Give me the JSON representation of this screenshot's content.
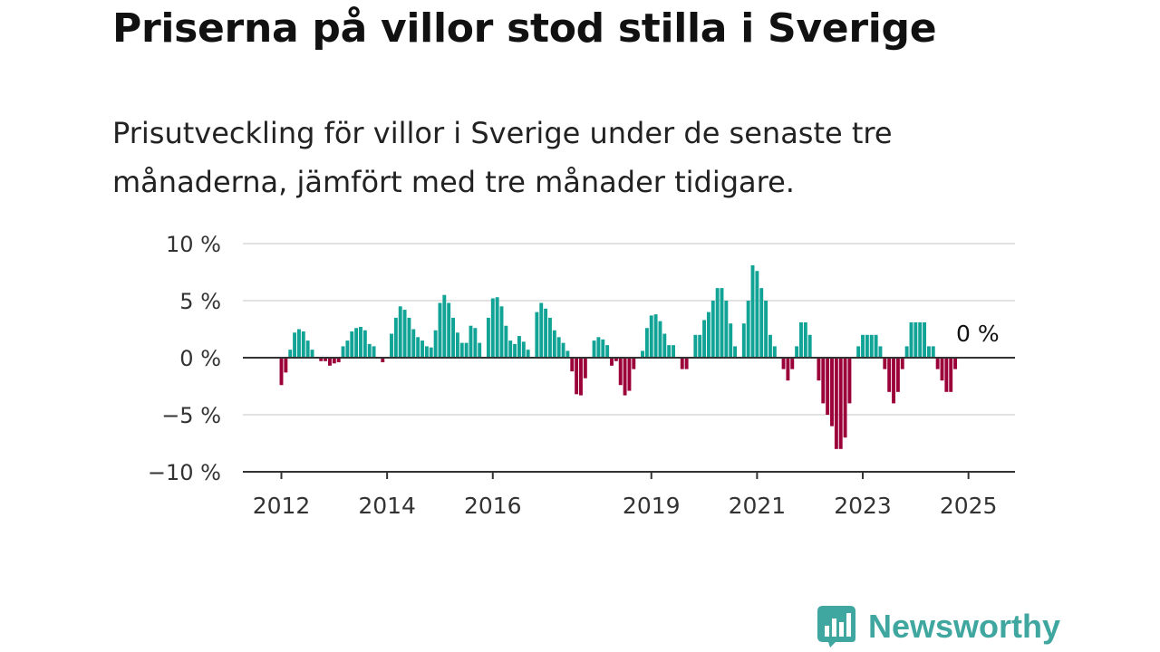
{
  "title": "Priserna på villor stod stilla i Sverige",
  "subtitle": "Prisutveckling för villor i Sverige under de senaste tre månaderna, jämfört med tre månader tidigare.",
  "logo": {
    "name": "Newsworthy"
  },
  "colors": {
    "positive": "#11a396",
    "negative": "#9c0039",
    "grid": "#d9d9d9",
    "axis": "#333333"
  },
  "chart_data": {
    "type": "bar",
    "ylim": [
      -10,
      10
    ],
    "yticks": [
      10,
      5,
      0,
      -5,
      -10
    ],
    "ytick_labels": [
      "10 %",
      "5 %",
      "0 %",
      "−5 %",
      "−10 %"
    ],
    "xticks": [
      {
        "label": "2012",
        "index": 0
      },
      {
        "label": "2014",
        "index": 24
      },
      {
        "label": "2016",
        "index": 48
      },
      {
        "label": "2019",
        "index": 84
      },
      {
        "label": "2021",
        "index": 108
      },
      {
        "label": "2023",
        "index": 132
      },
      {
        "label": "2025",
        "index": 156
      }
    ],
    "last_value_label": "0 %",
    "grid": true,
    "start": "2012-01",
    "values": [
      -2.4,
      -1.3,
      0.7,
      2.2,
      2.5,
      2.3,
      1.5,
      0.7,
      0,
      -0.3,
      -0.3,
      -0.7,
      -0.5,
      -0.4,
      1.0,
      1.5,
      2.3,
      2.6,
      2.7,
      2.4,
      1.2,
      1.0,
      0,
      -0.4,
      0,
      2.1,
      3.5,
      4.5,
      4.2,
      3.5,
      2.5,
      1.8,
      1.5,
      1.0,
      0.9,
      2.4,
      4.8,
      5.5,
      4.8,
      3.5,
      2.2,
      1.3,
      1.3,
      2.8,
      2.6,
      1.3,
      0,
      3.5,
      5.2,
      5.3,
      4.5,
      2.8,
      1.5,
      1.2,
      1.9,
      1.4,
      0.7,
      0,
      4.0,
      4.8,
      4.3,
      3.5,
      2.4,
      1.8,
      1.3,
      0.6,
      -1.2,
      -3.2,
      -3.3,
      -1.8,
      0,
      1.5,
      1.8,
      1.6,
      1.1,
      -0.7,
      -0.3,
      -2.4,
      -3.3,
      -2.9,
      -1.0,
      0,
      0.6,
      2.6,
      3.7,
      3.8,
      3.2,
      2.1,
      1.1,
      1.1,
      0,
      -1.0,
      -1.0,
      0,
      2.0,
      2.0,
      3.3,
      4.0,
      5.0,
      6.1,
      6.1,
      5.0,
      3.0,
      1.0,
      0,
      3.0,
      5.0,
      8.1,
      7.6,
      6.1,
      5.0,
      2.0,
      1.0,
      0,
      -1.0,
      -2.0,
      -1.0,
      1.0,
      3.1,
      3.1,
      2.0,
      0,
      -2.0,
      -4.0,
      -5.0,
      -6.0,
      -8.0,
      -8.0,
      -7.0,
      -4.0,
      0,
      1.0,
      2.0,
      2.0,
      2.0,
      2.0,
      1.0,
      -1.0,
      -3.0,
      -4.0,
      -3.0,
      -1.0,
      1.0,
      3.1,
      3.1,
      3.1,
      3.1,
      1.0,
      1.0,
      -1.0,
      -2.0,
      -3.0,
      -3.0,
      -1.0,
      0
    ]
  }
}
